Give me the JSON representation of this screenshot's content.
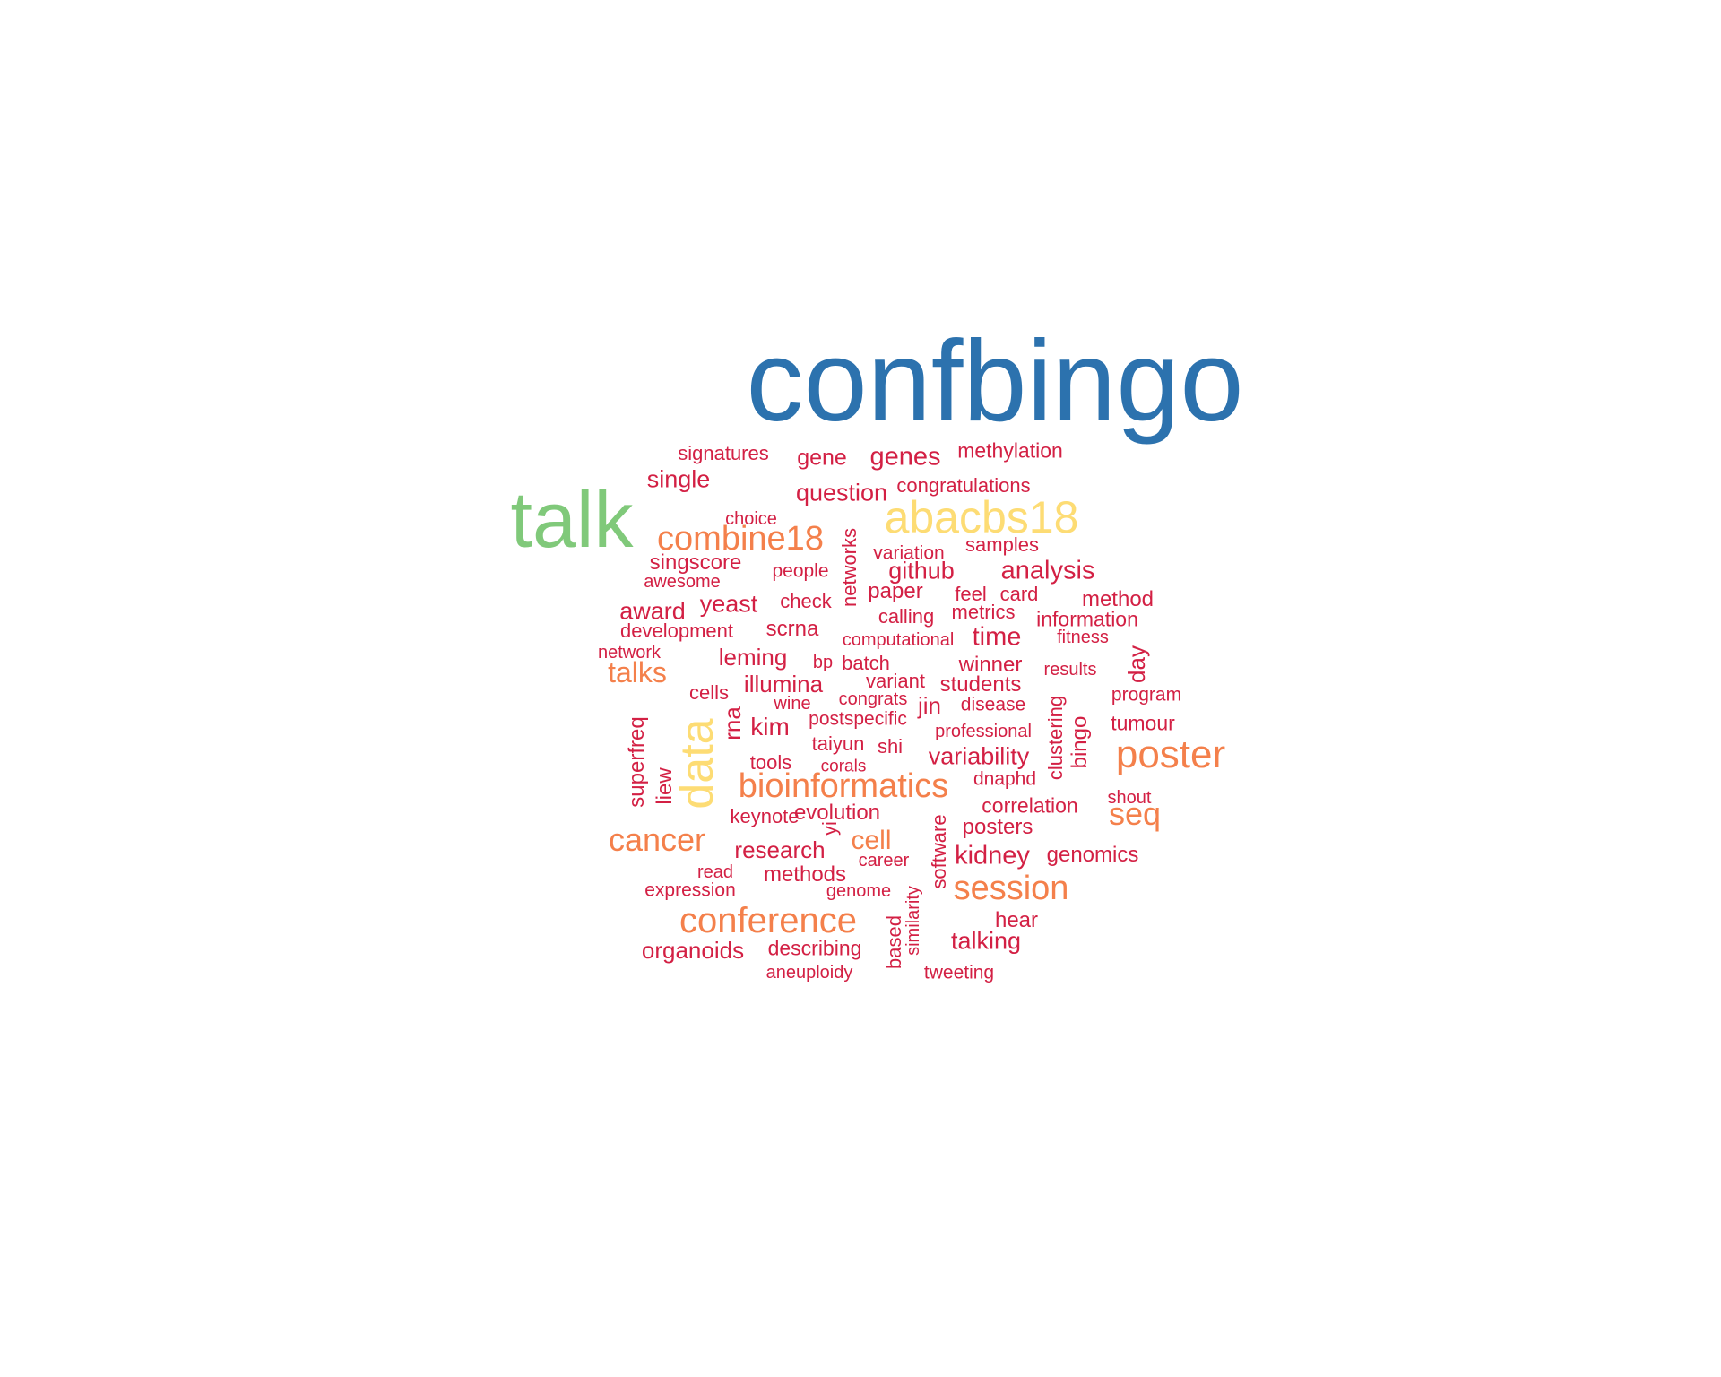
{
  "palette": {
    "blue": "#2c72ae",
    "green": "#80c97a",
    "yellow": "#fddc74",
    "orange": "#f4804b",
    "red": "#d32044"
  },
  "words": [
    {
      "text": "confbingo",
      "color": "blue"
    },
    {
      "text": "talk",
      "color": "green"
    },
    {
      "text": "abacbs18",
      "color": "yellow"
    },
    {
      "text": "data",
      "color": "yellow"
    },
    {
      "text": "combine18",
      "color": "orange"
    },
    {
      "text": "poster",
      "color": "orange"
    },
    {
      "text": "bioinformatics",
      "color": "orange"
    },
    {
      "text": "conference",
      "color": "orange"
    },
    {
      "text": "session",
      "color": "orange"
    },
    {
      "text": "cancer",
      "color": "orange"
    },
    {
      "text": "seq",
      "color": "orange"
    },
    {
      "text": "talks",
      "color": "orange"
    },
    {
      "text": "cell",
      "color": "orange"
    },
    {
      "text": "signatures",
      "color": "red"
    },
    {
      "text": "gene",
      "color": "red"
    },
    {
      "text": "genes",
      "color": "red"
    },
    {
      "text": "methylation",
      "color": "red"
    },
    {
      "text": "single",
      "color": "red"
    },
    {
      "text": "question",
      "color": "red"
    },
    {
      "text": "congratulations",
      "color": "red"
    },
    {
      "text": "choice",
      "color": "red"
    },
    {
      "text": "networks",
      "color": "red"
    },
    {
      "text": "variation",
      "color": "red"
    },
    {
      "text": "samples",
      "color": "red"
    },
    {
      "text": "singscore",
      "color": "red"
    },
    {
      "text": "github",
      "color": "red"
    },
    {
      "text": "analysis",
      "color": "red"
    },
    {
      "text": "awesome",
      "color": "red"
    },
    {
      "text": "people",
      "color": "red"
    },
    {
      "text": "paper",
      "color": "red"
    },
    {
      "text": "feel",
      "color": "red"
    },
    {
      "text": "card",
      "color": "red"
    },
    {
      "text": "method",
      "color": "red"
    },
    {
      "text": "award",
      "color": "red"
    },
    {
      "text": "yeast",
      "color": "red"
    },
    {
      "text": "check",
      "color": "red"
    },
    {
      "text": "calling",
      "color": "red"
    },
    {
      "text": "metrics",
      "color": "red"
    },
    {
      "text": "information",
      "color": "red"
    },
    {
      "text": "development",
      "color": "red"
    },
    {
      "text": "scrna",
      "color": "red"
    },
    {
      "text": "computational",
      "color": "red"
    },
    {
      "text": "time",
      "color": "red"
    },
    {
      "text": "fitness",
      "color": "red"
    },
    {
      "text": "day",
      "color": "red"
    },
    {
      "text": "network",
      "color": "red"
    },
    {
      "text": "leming",
      "color": "red"
    },
    {
      "text": "bp",
      "color": "red"
    },
    {
      "text": "batch",
      "color": "red"
    },
    {
      "text": "winner",
      "color": "red"
    },
    {
      "text": "results",
      "color": "red"
    },
    {
      "text": "illumina",
      "color": "red"
    },
    {
      "text": "variant",
      "color": "red"
    },
    {
      "text": "students",
      "color": "red"
    },
    {
      "text": "cells",
      "color": "red"
    },
    {
      "text": "congrats",
      "color": "red"
    },
    {
      "text": "jin",
      "color": "red"
    },
    {
      "text": "disease",
      "color": "red"
    },
    {
      "text": "program",
      "color": "red"
    },
    {
      "text": "wine",
      "color": "red"
    },
    {
      "text": "clustering",
      "color": "red"
    },
    {
      "text": "rna",
      "color": "red"
    },
    {
      "text": "postspecific",
      "color": "red"
    },
    {
      "text": "bingo",
      "color": "red"
    },
    {
      "text": "kim",
      "color": "red"
    },
    {
      "text": "professional",
      "color": "red"
    },
    {
      "text": "tumour",
      "color": "red"
    },
    {
      "text": "superfreq",
      "color": "red"
    },
    {
      "text": "taiyun",
      "color": "red"
    },
    {
      "text": "shi",
      "color": "red"
    },
    {
      "text": "tools",
      "color": "red"
    },
    {
      "text": "variability",
      "color": "red"
    },
    {
      "text": "corals",
      "color": "red"
    },
    {
      "text": "dnaphd",
      "color": "red"
    },
    {
      "text": "liew",
      "color": "red"
    },
    {
      "text": "shout",
      "color": "red"
    },
    {
      "text": "evolution",
      "color": "red"
    },
    {
      "text": "correlation",
      "color": "red"
    },
    {
      "text": "keynote",
      "color": "red"
    },
    {
      "text": "yi",
      "color": "red"
    },
    {
      "text": "software",
      "color": "red"
    },
    {
      "text": "posters",
      "color": "red"
    },
    {
      "text": "research",
      "color": "red"
    },
    {
      "text": "kidney",
      "color": "red"
    },
    {
      "text": "genomics",
      "color": "red"
    },
    {
      "text": "career",
      "color": "red"
    },
    {
      "text": "read",
      "color": "red"
    },
    {
      "text": "methods",
      "color": "red"
    },
    {
      "text": "expression",
      "color": "red"
    },
    {
      "text": "genome",
      "color": "red"
    },
    {
      "text": "similarity",
      "color": "red"
    },
    {
      "text": "hear",
      "color": "red"
    },
    {
      "text": "based",
      "color": "red"
    },
    {
      "text": "organoids",
      "color": "red"
    },
    {
      "text": "describing",
      "color": "red"
    },
    {
      "text": "talking",
      "color": "red"
    },
    {
      "text": "aneuploidy",
      "color": "red"
    },
    {
      "text": "tweeting",
      "color": "red"
    }
  ]
}
